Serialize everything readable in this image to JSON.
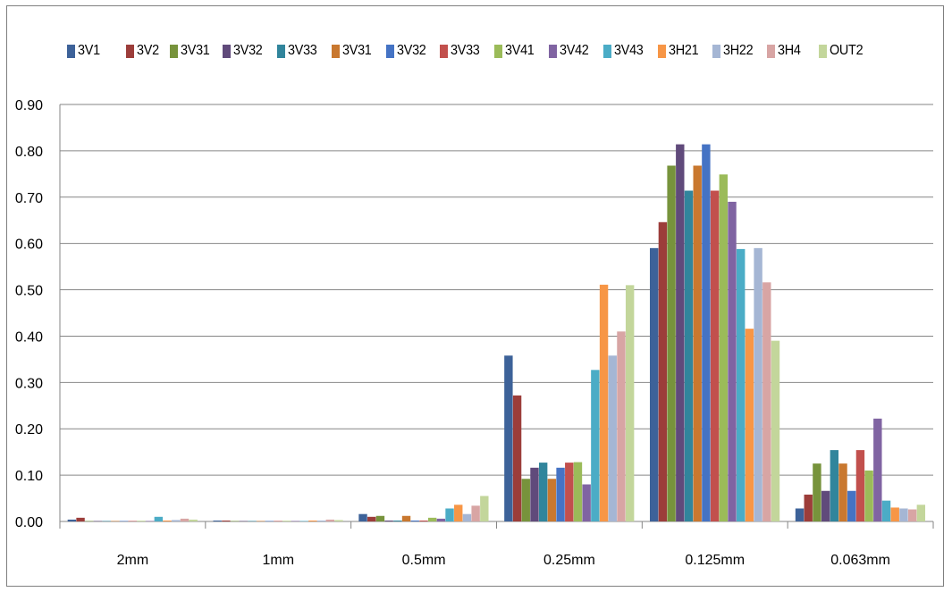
{
  "chart_data": {
    "type": "bar",
    "title": "",
    "xlabel": "",
    "ylabel": "",
    "ylim": [
      0,
      0.9
    ],
    "yticks": [
      "0.00",
      "0.10",
      "0.20",
      "0.30",
      "0.40",
      "0.50",
      "0.60",
      "0.70",
      "0.80",
      "0.90"
    ],
    "grid": true,
    "legend_position": "top",
    "categories": [
      "2mm",
      "1mm",
      "0.5mm",
      "0.25mm",
      "0.125mm",
      "0.063mm"
    ],
    "series": [
      {
        "name": "3V1",
        "color": "#3d6299",
        "values": [
          0.004,
          0.002,
          0.016,
          0.358,
          0.59,
          0.028
        ]
      },
      {
        "name": "3V2",
        "color": "#9c3d3a",
        "values": [
          0.008,
          0.002,
          0.01,
          0.272,
          0.646,
          0.058
        ]
      },
      {
        "name": "3V31",
        "color": "#77933c",
        "values": [
          0.001,
          0.001,
          0.012,
          0.092,
          0.768,
          0.125
        ]
      },
      {
        "name": "3V32",
        "color": "#604a7b",
        "values": [
          0.001,
          0.001,
          0.002,
          0.116,
          0.814,
          0.066
        ]
      },
      {
        "name": "3V33",
        "color": "#31859c",
        "values": [
          0.001,
          0.001,
          0.002,
          0.127,
          0.714,
          0.154
        ]
      },
      {
        "name": "3V31",
        "color": "#c9782f",
        "values": [
          0.001,
          0.001,
          0.012,
          0.092,
          0.768,
          0.125
        ]
      },
      {
        "name": "3V32",
        "color": "#4573c4",
        "values": [
          0.001,
          0.001,
          0.002,
          0.116,
          0.814,
          0.066
        ]
      },
      {
        "name": "3V33",
        "color": "#c2504d",
        "values": [
          0.001,
          0.001,
          0.002,
          0.127,
          0.714,
          0.154
        ]
      },
      {
        "name": "3V41",
        "color": "#9bbb59",
        "values": [
          0.001,
          0.001,
          0.008,
          0.128,
          0.749,
          0.11
        ]
      },
      {
        "name": "3V42",
        "color": "#8064a2",
        "values": [
          0.001,
          0.001,
          0.006,
          0.08,
          0.69,
          0.222
        ]
      },
      {
        "name": "3V43",
        "color": "#4bacc6",
        "values": [
          0.01,
          0.001,
          0.028,
          0.327,
          0.588,
          0.045
        ]
      },
      {
        "name": "3H21",
        "color": "#f79646",
        "values": [
          0.002,
          0.002,
          0.036,
          0.511,
          0.416,
          0.03
        ]
      },
      {
        "name": "3H22",
        "color": "#a5b6d4",
        "values": [
          0.003,
          0.002,
          0.016,
          0.358,
          0.59,
          0.028
        ]
      },
      {
        "name": "3H4",
        "color": "#d8a5a4",
        "values": [
          0.006,
          0.004,
          0.034,
          0.41,
          0.516,
          0.026
        ]
      },
      {
        "name": "OUT2",
        "color": "#c3d69b",
        "values": [
          0.004,
          0.003,
          0.055,
          0.51,
          0.39,
          0.036
        ]
      }
    ]
  },
  "colors": {
    "grid": "#868686",
    "axis": "#868686",
    "frame": "#7f7f7f"
  }
}
